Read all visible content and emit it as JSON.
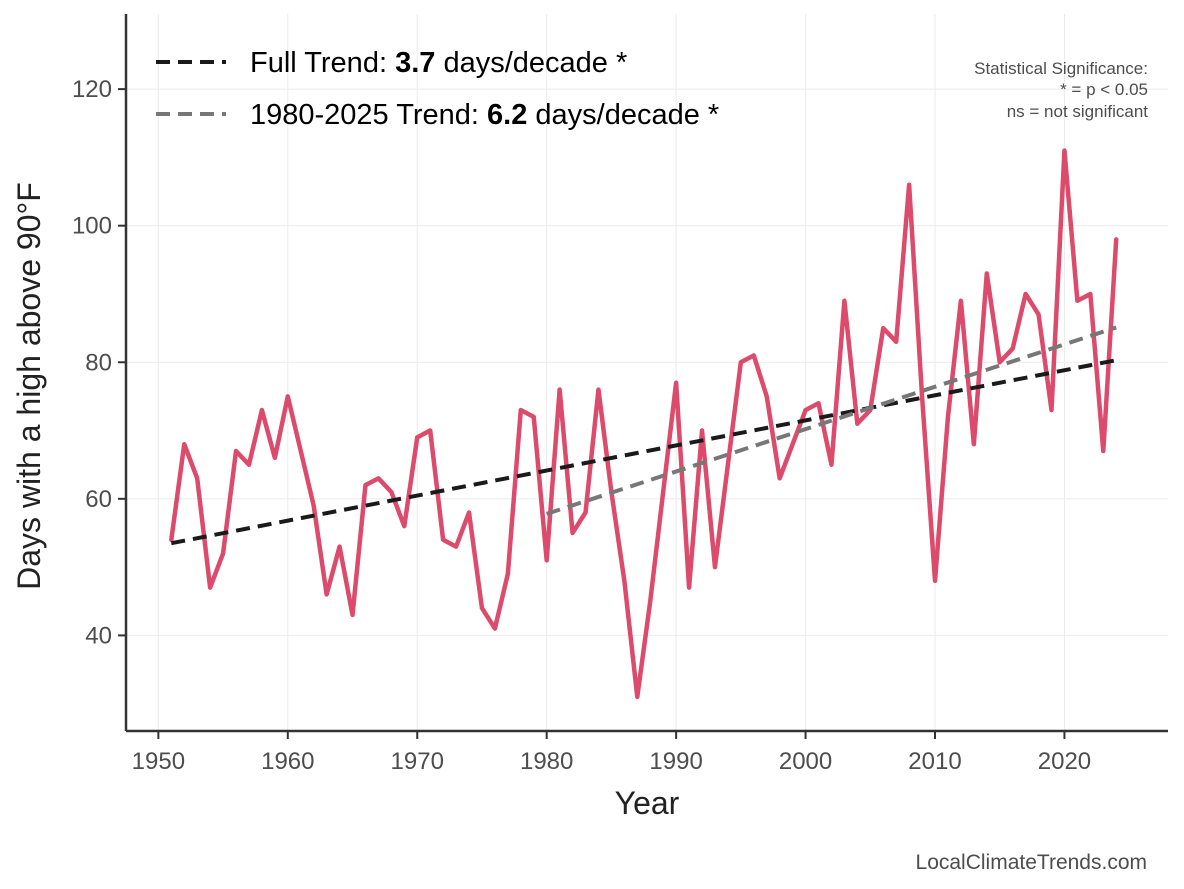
{
  "chart_data": {
    "type": "line",
    "title": "",
    "xlabel": "Year",
    "ylabel": "Days with a high above 90°F",
    "xlim": [
      1947.5,
      2028
    ],
    "ylim": [
      26,
      131
    ],
    "x_ticks": [
      1950,
      1960,
      1970,
      1980,
      1990,
      2000,
      2010,
      2020
    ],
    "y_ticks": [
      40,
      60,
      80,
      100,
      120
    ],
    "grid": true,
    "legend_position": "top-left",
    "colors": {
      "series": "#dc4b6c",
      "full_trend": "#1a1a1a",
      "recent_trend": "#777777",
      "axis": "#333333",
      "grid": "#ebebeb"
    },
    "series": [
      {
        "x": [
          1951,
          1952,
          1953,
          1954,
          1955,
          1956,
          1957,
          1958,
          1959,
          1960,
          1961,
          1962,
          1963,
          1964,
          1965,
          1966,
          1967,
          1968,
          1969,
          1970,
          1971,
          1972,
          1973,
          1974,
          1975,
          1976,
          1977,
          1978,
          1979,
          1980,
          1981,
          1982,
          1983,
          1984,
          1985,
          1986,
          1987,
          1988,
          1989,
          1990,
          1991,
          1992,
          1993,
          1994,
          1995,
          1996,
          1997,
          1998,
          1999,
          2000,
          2001,
          2002,
          2003,
          2004,
          2005,
          2006,
          2007,
          2008,
          2009,
          2010,
          2011,
          2012,
          2013,
          2014,
          2015,
          2016,
          2017,
          2018,
          2019,
          2020,
          2021,
          2022,
          2023,
          2024
        ],
        "values": [
          54,
          68,
          63,
          47,
          52,
          67,
          65,
          73,
          66,
          75,
          67,
          59,
          46,
          53,
          43,
          62,
          63,
          61,
          56,
          69,
          70,
          54,
          53,
          58,
          44,
          41,
          49,
          73,
          72,
          51,
          76,
          55,
          58,
          76,
          61,
          48,
          31,
          45,
          61,
          77,
          47,
          70,
          50,
          65,
          80,
          81,
          75,
          63,
          68,
          73,
          74,
          65,
          89,
          71,
          73,
          85,
          83,
          106,
          75,
          48,
          72,
          89,
          68,
          93,
          80,
          82,
          90,
          87,
          73,
          111,
          89,
          90,
          67,
          98
        ]
      }
    ],
    "trends": [
      {
        "label_prefix": "Full Trend: ",
        "label_value": "3.7",
        "label_suffix": " days/decade *",
        "x": [
          1951,
          2024
        ],
        "y": [
          53.5,
          80.3
        ],
        "style": "dashed-black"
      },
      {
        "label_prefix": "1980-2025 Trend: ",
        "label_value": "6.2",
        "label_suffix": " days/decade *",
        "x": [
          1980,
          2024
        ],
        "y": [
          57.8,
          85.1
        ],
        "style": "dashed-gray"
      }
    ],
    "annotations": {
      "significance_title": "Statistical Significance:",
      "significance_line1": "* = p < 0.05",
      "significance_line2": "ns = not significant"
    },
    "credit": "LocalClimateTrends.com"
  }
}
